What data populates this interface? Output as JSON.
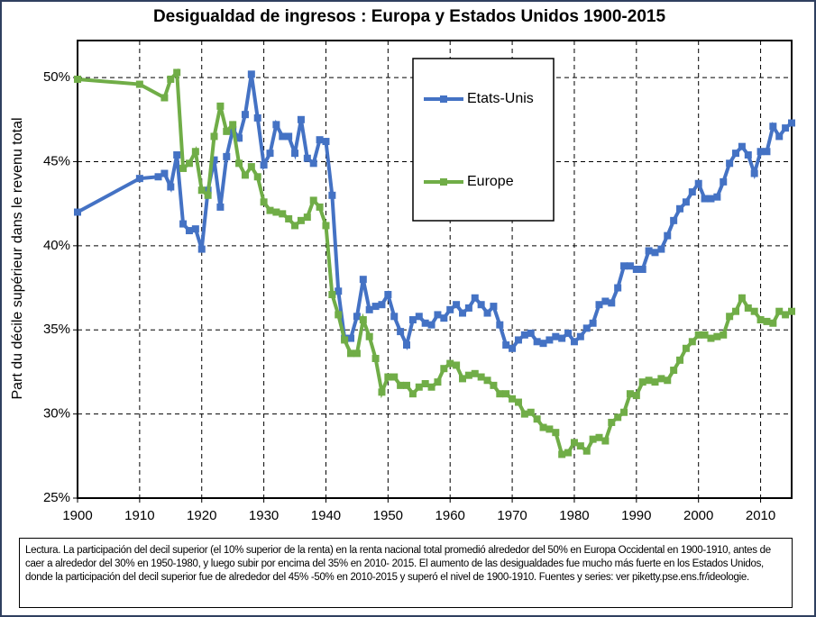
{
  "chart_data": {
    "type": "line",
    "title": "Desigualdad de ingresos : Europa y  Estados Unidos 1900-2015",
    "y_label": "Part du décile supérieur dans le revenu total",
    "note": "Lectura. La participación del decil superior (el 10% superior de la renta) en la renta nacional total promedió alrededor del 50% en Europa Occidental en 1900-1910, antes de caer a alrededor del 30% en 1950-1980, y luego subir por encima del 35% en 2010- 2015. El aumento de las desigualdades fue mucho más fuerte en los Estados Unidos, donde la participación del decil superior fue de alrededor del 45% -50% en 2010-2015 y superó el nivel de 1900-1910. Fuentes y series: ver piketty.pse.ens.fr/ideologie.",
    "xlim": [
      1900,
      2015
    ],
    "xticks": [
      1900,
      1910,
      1920,
      1930,
      1940,
      1950,
      1960,
      1970,
      1980,
      1990,
      2000,
      2010
    ],
    "ylim": [
      25,
      52.2
    ],
    "yticks": [
      {
        "value": 25,
        "label": "25%"
      },
      {
        "value": 30,
        "label": "30%"
      },
      {
        "value": 35,
        "label": "35%"
      },
      {
        "value": 40,
        "label": "40%"
      },
      {
        "value": 45,
        "label": "45%"
      },
      {
        "value": 50,
        "label": "50%"
      }
    ],
    "grid": true,
    "legend": "upper center",
    "series": [
      {
        "name": "Etats-Unis",
        "color": "#4472c4",
        "x": [
          1900,
          1910,
          1913,
          1914,
          1915,
          1916,
          1917,
          1918,
          1919,
          1920,
          1921,
          1922,
          1923,
          1924,
          1925,
          1926,
          1927,
          1928,
          1929,
          1930,
          1931,
          1932,
          1933,
          1934,
          1935,
          1936,
          1937,
          1938,
          1939,
          1940,
          1941,
          1942,
          1943,
          1944,
          1945,
          1946,
          1947,
          1948,
          1949,
          1950,
          1951,
          1952,
          1953,
          1954,
          1955,
          1956,
          1957,
          1958,
          1959,
          1960,
          1961,
          1962,
          1963,
          1964,
          1965,
          1966,
          1967,
          1968,
          1969,
          1970,
          1971,
          1972,
          1973,
          1974,
          1975,
          1976,
          1977,
          1978,
          1979,
          1980,
          1981,
          1982,
          1983,
          1984,
          1985,
          1986,
          1987,
          1988,
          1989,
          1990,
          1991,
          1992,
          1993,
          1994,
          1995,
          1996,
          1997,
          1998,
          1999,
          2000,
          2001,
          2002,
          2003,
          2004,
          2005,
          2006,
          2007,
          2008,
          2009,
          2010,
          2011,
          2012,
          2013,
          2014,
          2015
        ],
        "values": [
          42,
          44,
          44.1,
          44.3,
          43.5,
          45.4,
          41.3,
          40.9,
          41,
          39.8,
          43.3,
          45.1,
          42.3,
          45.3,
          46.9,
          46.4,
          47.8,
          50.2,
          47.6,
          44.8,
          45.5,
          47.2,
          46.5,
          46.5,
          45.5,
          47.5,
          45.2,
          44.9,
          46.3,
          46.2,
          43,
          37.3,
          34.5,
          34.5,
          35.8,
          38,
          36.2,
          36.4,
          36.5,
          37.1,
          35.8,
          34.9,
          34.1,
          35.6,
          35.8,
          35.4,
          35.3,
          35.9,
          35.7,
          36.2,
          36.5,
          36,
          36.3,
          36.9,
          36.5,
          36,
          36.4,
          35.3,
          34.1,
          33.9,
          34.4,
          34.7,
          34.8,
          34.3,
          34.2,
          34.4,
          34.6,
          34.5,
          34.8,
          34.3,
          34.6,
          35.1,
          35.4,
          36.5,
          36.7,
          36.6,
          37.5,
          38.8,
          38.8,
          38.6,
          38.6,
          39.7,
          39.6,
          39.8,
          40.6,
          41.5,
          42.2,
          42.6,
          43.2,
          43.7,
          42.8,
          42.8,
          42.9,
          43.8,
          44.9,
          45.5,
          45.9,
          45.4,
          44.3,
          45.6,
          45.6,
          47.1,
          46.5,
          47,
          47.3
        ]
      },
      {
        "name": "Europe",
        "color": "#70ad47",
        "x": [
          1900,
          1910,
          1914,
          1915,
          1916,
          1917,
          1918,
          1919,
          1920,
          1921,
          1922,
          1923,
          1924,
          1925,
          1926,
          1927,
          1928,
          1929,
          1930,
          1931,
          1932,
          1933,
          1934,
          1935,
          1936,
          1937,
          1938,
          1939,
          1940,
          1941,
          1942,
          1943,
          1944,
          1945,
          1946,
          1947,
          1948,
          1949,
          1950,
          1951,
          1952,
          1953,
          1954,
          1955,
          1956,
          1957,
          1958,
          1959,
          1960,
          1961,
          1962,
          1963,
          1964,
          1965,
          1966,
          1967,
          1968,
          1969,
          1970,
          1971,
          1972,
          1973,
          1974,
          1975,
          1976,
          1977,
          1978,
          1979,
          1980,
          1981,
          1982,
          1983,
          1984,
          1985,
          1986,
          1987,
          1988,
          1989,
          1990,
          1991,
          1992,
          1993,
          1994,
          1995,
          1996,
          1997,
          1998,
          1999,
          2000,
          2001,
          2002,
          2003,
          2004,
          2005,
          2006,
          2007,
          2008,
          2009,
          2010,
          2011,
          2012,
          2013,
          2014,
          2015
        ],
        "values": [
          49.9,
          49.6,
          48.8,
          49.9,
          50.3,
          44.6,
          44.9,
          45.6,
          43.3,
          43,
          46.5,
          48.3,
          46.8,
          47.2,
          44.9,
          44.2,
          44.7,
          44.1,
          42.6,
          42.1,
          42,
          41.9,
          41.6,
          41.2,
          41.5,
          41.7,
          42.7,
          42.3,
          41.2,
          37.1,
          35.9,
          34.4,
          33.6,
          33.6,
          35.6,
          34.6,
          33.3,
          31.3,
          32.2,
          32.2,
          31.7,
          31.7,
          31.2,
          31.6,
          31.8,
          31.6,
          31.9,
          32.7,
          33,
          32.9,
          32.1,
          32.3,
          32.4,
          32.2,
          32,
          31.7,
          31.2,
          31.2,
          30.9,
          30.7,
          30,
          30.1,
          29.7,
          29.2,
          29.1,
          28.9,
          27.6,
          27.7,
          28.3,
          28.1,
          27.8,
          28.5,
          28.6,
          28.4,
          29.5,
          29.8,
          30.1,
          31.2,
          31.1,
          31.9,
          32,
          31.9,
          32.1,
          32,
          32.6,
          33.2,
          33.9,
          34.3,
          34.7,
          34.7,
          34.5,
          34.6,
          34.7,
          35.8,
          36.1,
          36.9,
          36.3,
          36.1,
          35.6,
          35.5,
          35.4,
          36.1,
          35.9,
          36.1
        ]
      }
    ]
  }
}
